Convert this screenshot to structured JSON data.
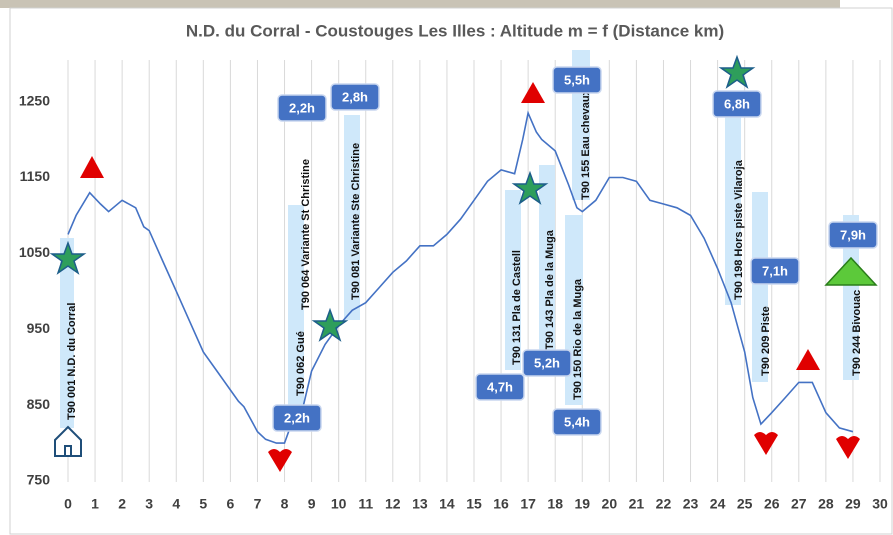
{
  "chart_data": {
    "type": "line",
    "title": "N.D. du Corral - Coustouges Les Illes : Altitude m = f (Distance km)",
    "x": [
      0,
      0.3,
      0.8,
      1.2,
      1.5,
      2,
      2.5,
      2.8,
      3,
      3.5,
      4,
      4.5,
      5,
      5.5,
      6,
      6.3,
      6.5,
      7,
      7.3,
      7.7,
      8,
      8.3,
      8.7,
      9,
      9.5,
      10,
      10.5,
      11,
      11.5,
      12,
      12.5,
      13,
      13.5,
      14,
      14.5,
      15,
      15.5,
      16,
      16.5,
      16.8,
      17,
      17.3,
      17.5,
      18,
      18.5,
      18.8,
      19,
      19.5,
      20,
      20.5,
      21,
      21.5,
      22,
      22.5,
      23,
      23.5,
      24,
      24.5,
      25,
      25.3,
      25.6,
      26,
      26.5,
      27,
      27.5,
      28,
      28.5,
      29
    ],
    "values": [
      1075,
      1100,
      1130,
      1115,
      1105,
      1120,
      1110,
      1085,
      1080,
      1040,
      1000,
      960,
      920,
      895,
      870,
      855,
      848,
      815,
      805,
      800,
      800,
      830,
      850,
      895,
      930,
      955,
      975,
      985,
      1005,
      1025,
      1040,
      1060,
      1060,
      1075,
      1095,
      1120,
      1145,
      1160,
      1155,
      1200,
      1235,
      1210,
      1200,
      1185,
      1140,
      1110,
      1105,
      1120,
      1150,
      1150,
      1145,
      1120,
      1115,
      1110,
      1100,
      1070,
      1030,
      985,
      920,
      860,
      825,
      840,
      860,
      880,
      880,
      840,
      820,
      815
    ],
    "color": "#4472c4",
    "xlim": [
      0,
      30
    ],
    "xticks": [
      0,
      1,
      2,
      3,
      4,
      5,
      6,
      7,
      8,
      9,
      10,
      11,
      12,
      13,
      14,
      15,
      16,
      17,
      18,
      19,
      20,
      21,
      22,
      23,
      24,
      25,
      26,
      27,
      28,
      29,
      30
    ],
    "ylim": [
      725,
      1318
    ],
    "yticks": [
      750,
      850,
      950,
      1050,
      1150,
      1250
    ],
    "grid": true,
    "waypoints": [
      "T90 001 N.D. du Corral",
      "T90 062 Gué",
      "T90 064 Variante St Christine",
      "T90 081 Variante Ste Christine",
      "T90 131 Pla de Castell",
      "T90 143 Pla de la Muga",
      "T90 150 Rio de la Muga",
      "T90 155 Eau chevaux",
      "T90 198 Hors piste Vilaroja",
      "T90 209 Piste",
      "T90 244 Bivouac"
    ],
    "durations": [
      "2,2h",
      "2,8h",
      "2,2h",
      "4,7h",
      "5,2h",
      "5,4h",
      "5,5h",
      "6,8h",
      "7,1h",
      "7,9h"
    ]
  }
}
